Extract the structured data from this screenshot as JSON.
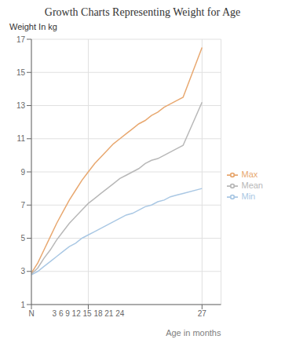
{
  "chart_data": {
    "type": "line",
    "title": "Growth Charts Representing Weight for Age",
    "x_label": "Age in months",
    "y_label": "Weight In kg",
    "x": [
      0,
      1,
      2,
      3,
      4,
      5,
      6,
      7,
      8,
      9,
      10,
      11,
      12,
      13,
      14,
      15,
      16,
      17,
      18,
      19,
      20,
      21,
      22,
      23,
      24,
      27
    ],
    "series": [
      {
        "name": "Min",
        "color": "#aac8e4",
        "values": [
          2.8,
          3.0,
          3.3,
          3.6,
          3.9,
          4.2,
          4.5,
          4.7,
          5.0,
          5.2,
          5.4,
          5.6,
          5.8,
          6.0,
          6.2,
          6.4,
          6.5,
          6.7,
          6.9,
          7.0,
          7.2,
          7.3,
          7.5,
          7.6,
          7.7,
          8.0
        ]
      },
      {
        "name": "Max",
        "color": "#e8a870",
        "values": [
          2.9,
          3.5,
          4.3,
          5.1,
          5.9,
          6.6,
          7.3,
          7.9,
          8.5,
          9.0,
          9.5,
          9.9,
          10.3,
          10.7,
          11.0,
          11.3,
          11.6,
          11.9,
          12.1,
          12.4,
          12.6,
          12.9,
          13.1,
          13.3,
          13.5,
          16.5
        ]
      },
      {
        "name": "Mean",
        "color": "#b8b8b8",
        "values": [
          2.85,
          3.2,
          3.8,
          4.3,
          4.9,
          5.4,
          5.9,
          6.3,
          6.7,
          7.1,
          7.4,
          7.7,
          8.0,
          8.3,
          8.6,
          8.8,
          9.0,
          9.2,
          9.5,
          9.7,
          9.8,
          10.0,
          10.2,
          10.4,
          10.6,
          13.2
        ]
      }
    ],
    "xlim": [
      0,
      30
    ],
    "ylim": [
      1,
      17
    ],
    "xticks": [
      {
        "value": 0,
        "label": "N"
      },
      {
        "value": 9,
        "label": "3 6 9 12 15 18 21 24"
      },
      27
    ],
    "yticks": [
      1,
      3,
      5,
      7,
      9,
      11,
      13,
      15,
      17
    ],
    "grid": true,
    "legend": "right"
  }
}
